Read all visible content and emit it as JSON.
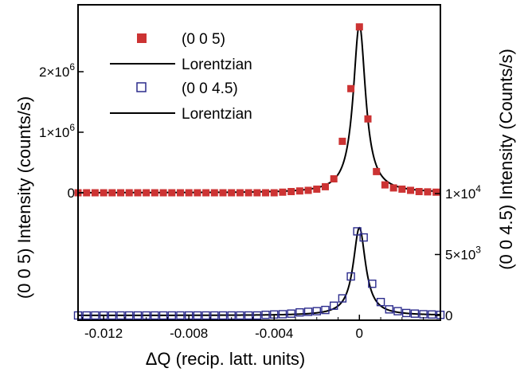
{
  "chart_data": {
    "type": "scatter",
    "xlabel": "ΔQ (recip. latt. units)",
    "ylabel_left": "(0 0 5) Intensity (counts/s)",
    "ylabel_right": "(0 0 4.5) Intensity (Counts/s)",
    "xlim": [
      -0.0132,
      0.0038
    ],
    "x_ticks": [
      {
        "value": -0.012,
        "label": "-0.012"
      },
      {
        "value": -0.008,
        "label": "-0.008"
      },
      {
        "value": -0.004,
        "label": "-0.004"
      },
      {
        "value": 0,
        "label": "0"
      }
    ],
    "y_left_ticks": [
      {
        "value": 0,
        "base": "0",
        "exp": ""
      },
      {
        "value": 1000000,
        "base": "1×10",
        "exp": "6"
      },
      {
        "value": 2000000,
        "base": "2×10",
        "exp": "6"
      }
    ],
    "y_right_ticks": [
      {
        "value": 0,
        "base": "0",
        "exp": ""
      },
      {
        "value": 5000,
        "base": "5×10",
        "exp": "3"
      },
      {
        "value": 10000,
        "base": "1×10",
        "exp": "4"
      }
    ],
    "legend": [
      {
        "label": "(0 0 5)",
        "marker": "filled-square"
      },
      {
        "label": "Lorentzian",
        "marker": "line"
      },
      {
        "label": "(0 0 4.5)",
        "marker": "open-square"
      },
      {
        "label": "Lorentzian",
        "marker": "line"
      }
    ],
    "series": [
      {
        "name": "(0 0 5)",
        "axis": "left",
        "color": "#cc3333",
        "marker": "filled-square",
        "x": [
          -0.0132,
          -0.0128,
          -0.0124,
          -0.012,
          -0.0116,
          -0.0112,
          -0.0108,
          -0.0104,
          -0.01,
          -0.0096,
          -0.0092,
          -0.0088,
          -0.0084,
          -0.008,
          -0.0076,
          -0.0072,
          -0.0068,
          -0.0064,
          -0.006,
          -0.0056,
          -0.0052,
          -0.0048,
          -0.0044,
          -0.004,
          -0.0036,
          -0.0032,
          -0.0028,
          -0.0024,
          -0.002,
          -0.0016,
          -0.0012,
          -0.0008,
          -0.0004,
          0,
          0.0004,
          0.0008,
          0.0012,
          0.0016,
          0.002,
          0.0024,
          0.0028,
          0.0032,
          0.0036
        ],
        "y": [
          0,
          0,
          0,
          0,
          0,
          0,
          0,
          0,
          0,
          0,
          0,
          0,
          0,
          0,
          0,
          0,
          0,
          0,
          0,
          0,
          0,
          0,
          0,
          0,
          10000,
          20000,
          30000,
          40000,
          60000,
          100000,
          230000,
          850000,
          1720000,
          2740000,
          1220000,
          350000,
          130000,
          80000,
          60000,
          40000,
          20000,
          15000,
          10000
        ]
      },
      {
        "name": "(0 0 4.5)",
        "axis": "right",
        "color": "#2b2b8c",
        "marker": "open-square",
        "x": [
          -0.0132,
          -0.0128,
          -0.0124,
          -0.012,
          -0.0116,
          -0.0112,
          -0.0108,
          -0.0104,
          -0.01,
          -0.0096,
          -0.0092,
          -0.0088,
          -0.0084,
          -0.008,
          -0.0076,
          -0.0072,
          -0.0068,
          -0.0064,
          -0.006,
          -0.0056,
          -0.0052,
          -0.0048,
          -0.0044,
          -0.004,
          -0.0036,
          -0.0032,
          -0.0028,
          -0.0024,
          -0.002,
          -0.0016,
          -0.0012,
          -0.0008,
          -0.0004,
          -0.0001,
          0.0002,
          0.0006,
          0.001,
          0.0014,
          0.0018,
          0.0022,
          0.0026,
          0.003,
          0.0034,
          0.0038
        ],
        "y": [
          0,
          0,
          0,
          0,
          0,
          0,
          0,
          0,
          0,
          0,
          0,
          0,
          0,
          0,
          0,
          0,
          0,
          0,
          0,
          0,
          0,
          0,
          50,
          80,
          100,
          150,
          250,
          300,
          350,
          450,
          800,
          1400,
          3200,
          6900,
          6400,
          2600,
          1100,
          500,
          350,
          200,
          150,
          100,
          80,
          50
        ]
      },
      {
        "name": "Lorentzian",
        "axis": "left",
        "color": "#000000",
        "marker": "line",
        "peak": 2780000,
        "center": 0,
        "hwhm": 0.00035
      },
      {
        "name": "Lorentzian",
        "axis": "right",
        "color": "#000000",
        "marker": "line",
        "peak": 7200,
        "center": 0,
        "hwhm": 0.00035
      }
    ]
  }
}
